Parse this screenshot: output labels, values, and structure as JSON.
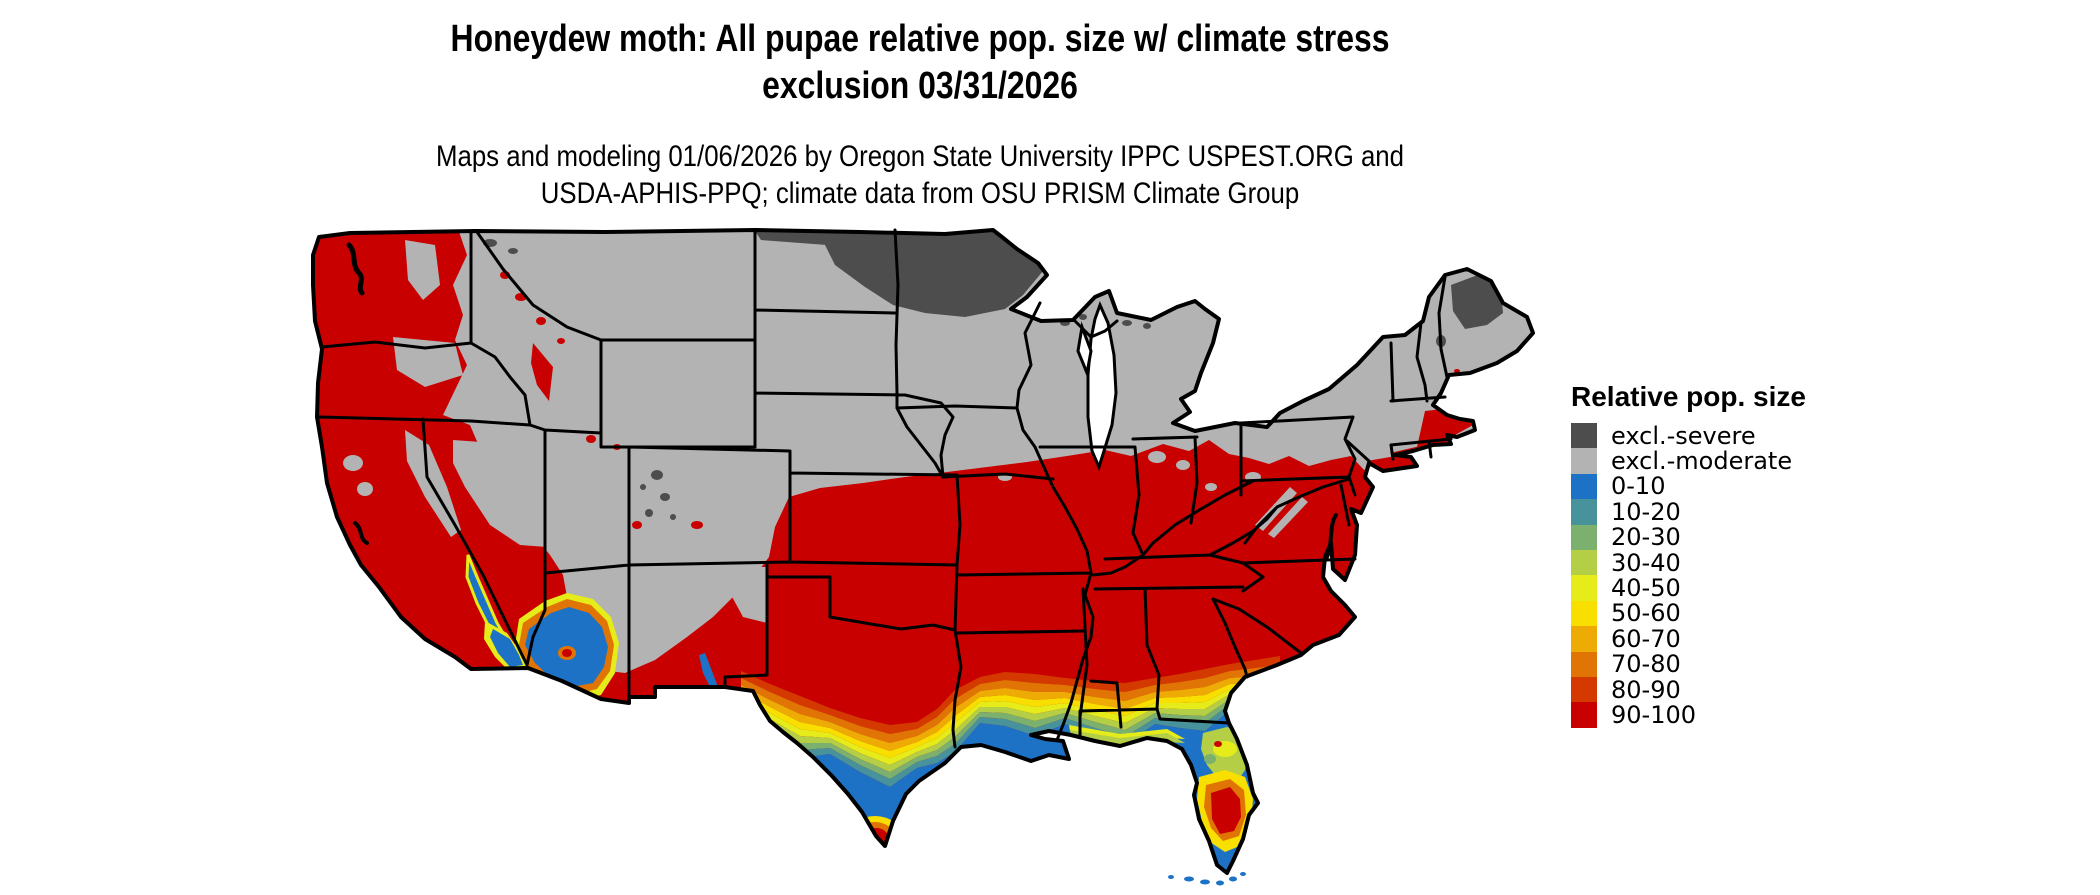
{
  "figure": {
    "title_line1": "Honeydew moth: All pupae relative pop. size w/ climate stress",
    "title_line2": "exclusion 03/31/2026",
    "subtitle_line1": "Maps and modeling 01/06/2026 by Oregon State University IPPC USPEST.ORG and",
    "subtitle_line2": "USDA-APHIS-PPQ; climate data from OSU PRISM Climate Group"
  },
  "legend": {
    "title": "Relative pop. size",
    "items": [
      {
        "label": "excl.-severe",
        "color": "#4D4D4D"
      },
      {
        "label": "excl.-moderate",
        "color": "#B3B3B3"
      },
      {
        "label": "0-10",
        "color": "#1D72C6"
      },
      {
        "label": "10-20",
        "color": "#48929C"
      },
      {
        "label": "20-30",
        "color": "#7BB06F"
      },
      {
        "label": "30-40",
        "color": "#B4CF46"
      },
      {
        "label": "40-50",
        "color": "#E5EC1A"
      },
      {
        "label": "50-60",
        "color": "#F8DF00"
      },
      {
        "label": "60-70",
        "color": "#EEAB06"
      },
      {
        "label": "70-80",
        "color": "#E07505"
      },
      {
        "label": "80-90",
        "color": "#D43A00"
      },
      {
        "label": "90-100",
        "color": "#C90000"
      }
    ]
  },
  "chart_data": {
    "type": "heatmap",
    "title": "Honeydew moth: All pupae relative pop. size w/ climate stress exclusion 03/31/2026",
    "map_kind": "CONUS raster choropleth (DDRP pest risk map)",
    "date_shown": "03/31/2026",
    "model_run_date": "01/06/2026",
    "legend_title": "Relative pop. size",
    "classes": [
      "excl.-severe",
      "excl.-moderate",
      "0-10",
      "10-20",
      "20-30",
      "30-40",
      "40-50",
      "50-60",
      "60-70",
      "70-80",
      "80-90",
      "90-100"
    ],
    "class_colors": [
      "#4D4D4D",
      "#B3B3B3",
      "#1D72C6",
      "#48929C",
      "#7BB06F",
      "#B4CF46",
      "#E5EC1A",
      "#F8DF00",
      "#EEAB06",
      "#E07505",
      "#D43A00",
      "#C90000"
    ],
    "region_summary": [
      {
        "region": "Northern Minnesota / eastern North Dakota / northern Maine",
        "value": "excl.-severe"
      },
      {
        "region": "Northern tier: Montana, Dakotas, Nebraska, Iowa, Wisconsin, Michigan, New York, northern New England, Great Basin, Rockies",
        "value": "excl.-moderate"
      },
      {
        "region": "Pacific coast states, California, southern Nevada/Arizona/New Mexico, Texas, lower Midwest and Southeast up to mid-Atlantic",
        "value": "90-100"
      },
      {
        "region": "Gulf coastal plain transition band (TX to GA/SC coast)",
        "value": "80-90 down to 10-20 gradient"
      },
      {
        "region": "Gulf Coast, Florida peninsula, south Texas, low deserts of southern Arizona / SE California",
        "value": "0-10"
      },
      {
        "region": "Central Florida pocket and Brownsville TX pocket",
        "value": "60-100"
      }
    ],
    "grid": false,
    "legend_position": "right"
  }
}
